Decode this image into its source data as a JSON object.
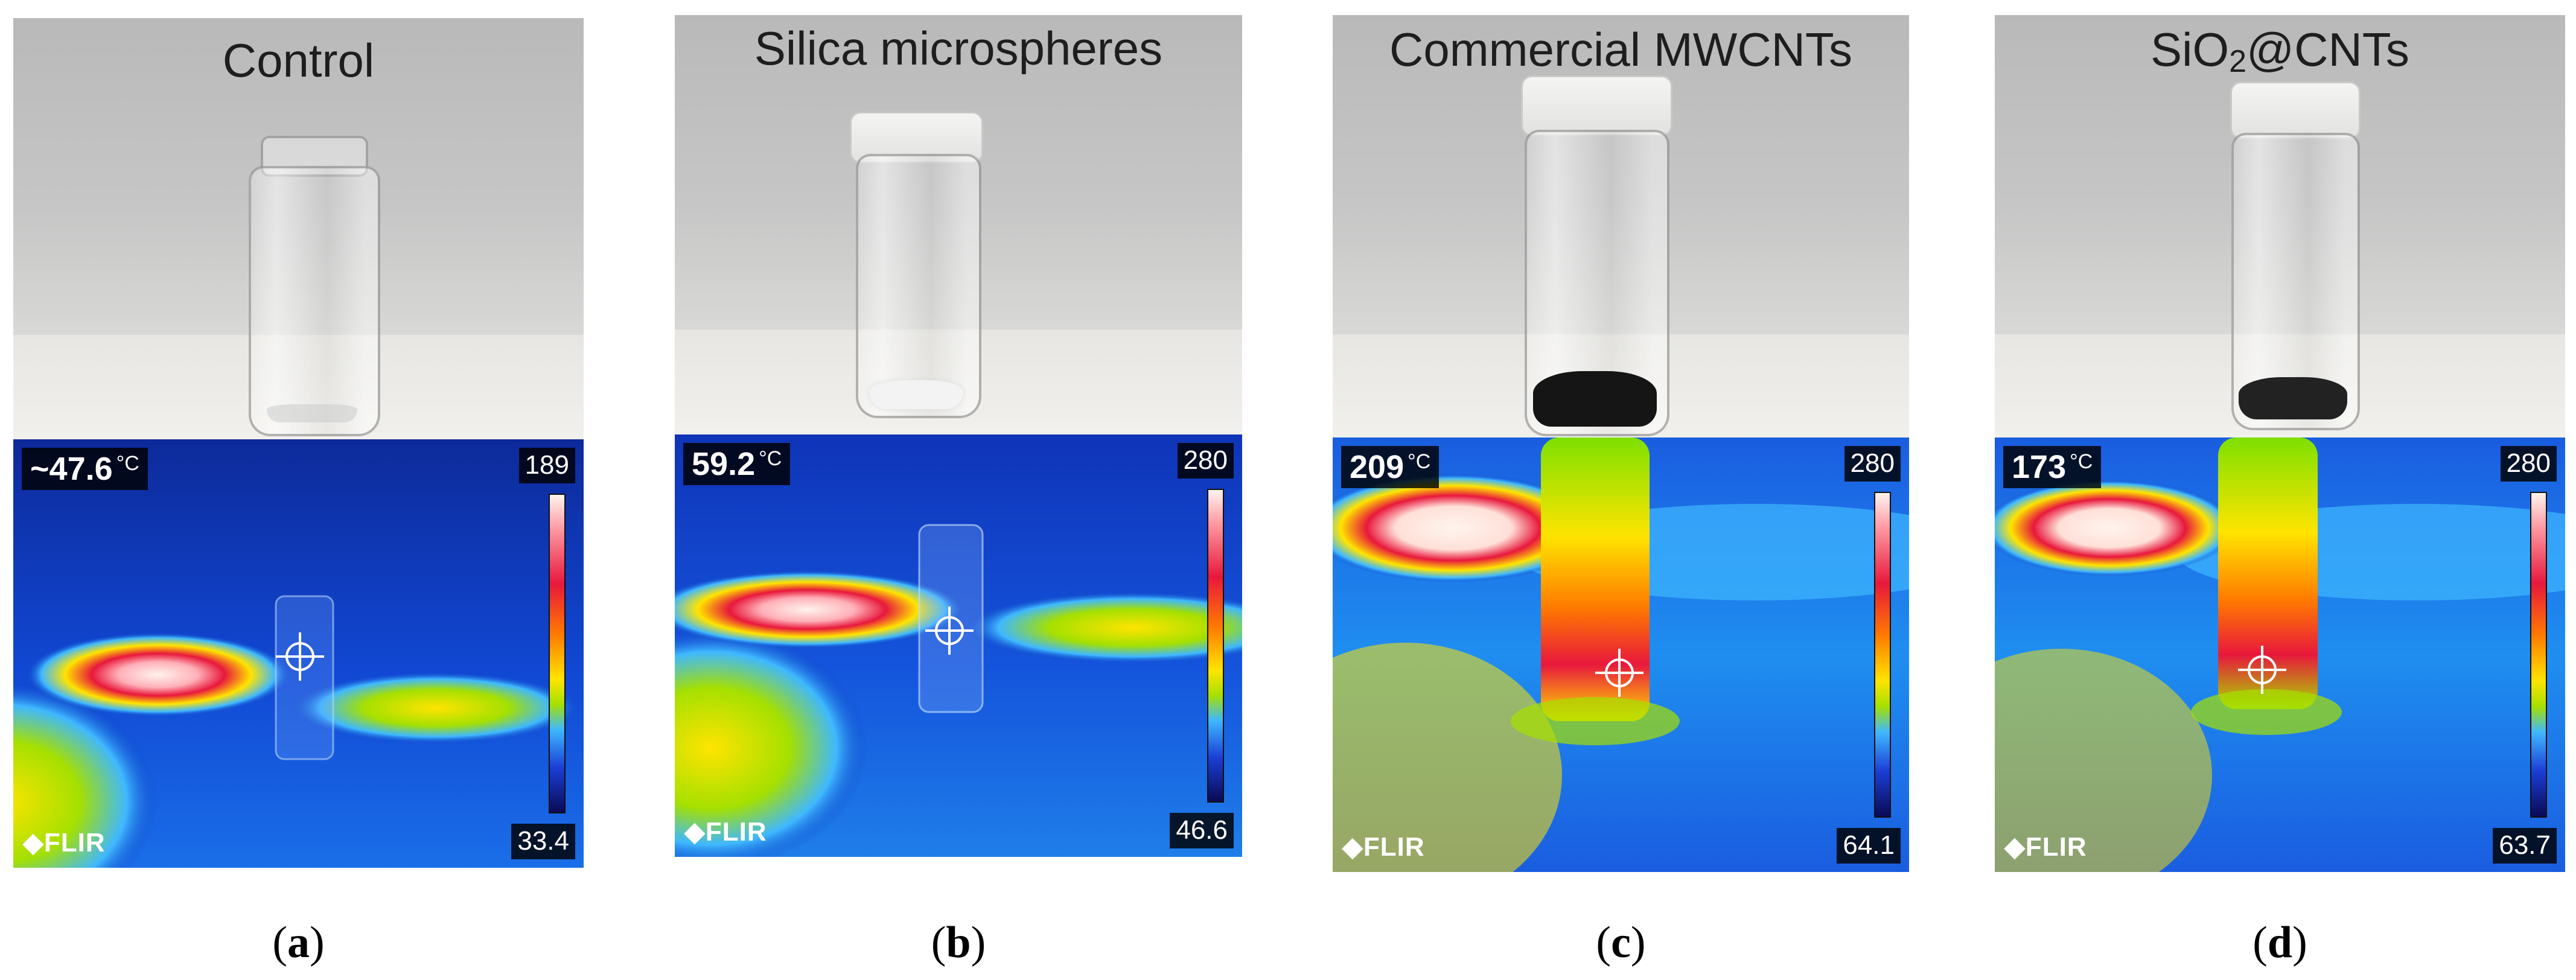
{
  "panels": [
    {
      "title": "Control",
      "caption_letter": "a",
      "readout_value": "~47.6",
      "readout_unit": "°C",
      "scale_max": "189",
      "scale_min": "33.4",
      "logo_text": "FLIR",
      "powder_color": "#d9d9d9",
      "vial_image": "empty glass vial",
      "thermal_image": "infrared image of vial with hot spot on surface"
    },
    {
      "title": "Silica microspheres",
      "caption_letter": "b",
      "readout_value": "59.2",
      "readout_unit": "°C",
      "scale_max": "280",
      "scale_min": "46.6",
      "logo_text": "FLIR",
      "powder_color": "#f2f2f2",
      "vial_image": "vial with white powder",
      "thermal_image": "infrared image of vial with hot spot on surface"
    },
    {
      "title": "Commercial MWCNTs",
      "caption_letter": "c",
      "readout_value": "209",
      "readout_unit": "°C",
      "scale_max": "280",
      "scale_min": "64.1",
      "logo_text": "FLIR",
      "powder_color": "#151515",
      "vial_image": "vial with black powder",
      "thermal_image": "infrared image of hot vial"
    },
    {
      "title_main": "SiO",
      "title_sub": "2",
      "title_rest": "@CNTs",
      "caption_letter": "d",
      "readout_value": "173",
      "readout_unit": "°C",
      "scale_max": "280",
      "scale_min": "63.7",
      "logo_text": "FLIR",
      "powder_color": "#222222",
      "vial_image": "vial with black powder",
      "thermal_image": "infrared image of hot vial"
    }
  ],
  "colors": {
    "thermal_cold": "#0a3fc4",
    "thermal_warm": "#ffe400",
    "thermal_hot": "#e8183c",
    "thermal_max": "#fff4ee"
  }
}
